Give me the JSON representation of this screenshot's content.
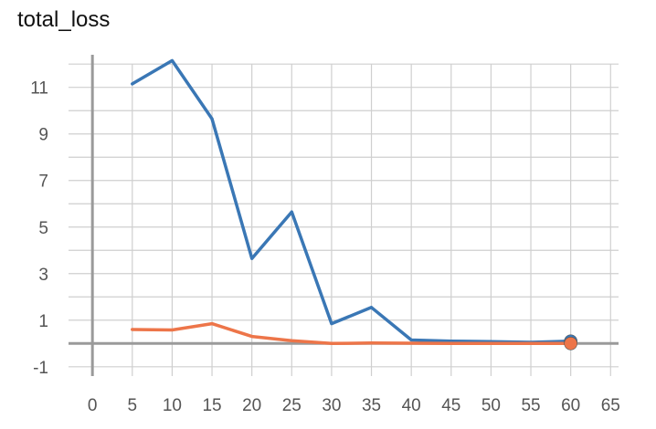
{
  "chart_data": {
    "type": "line",
    "title": "total_loss",
    "xlabel": "",
    "ylabel": "",
    "xlim": [
      -3,
      66
    ],
    "ylim": [
      -1.4,
      12.4
    ],
    "x_ticks": [
      0,
      5,
      10,
      15,
      20,
      25,
      30,
      35,
      40,
      45,
      50,
      55,
      60,
      65
    ],
    "y_ticks": [
      -1,
      1,
      3,
      5,
      7,
      9,
      11
    ],
    "y_minor_ticks": [
      0,
      2,
      4,
      6,
      8,
      10,
      12
    ],
    "grid": true,
    "series": [
      {
        "color": "#3a77b5",
        "x": [
          5,
          10,
          15,
          20,
          25,
          30,
          35,
          40,
          45,
          50,
          55,
          60
        ],
        "y": [
          11.15,
          12.15,
          9.65,
          3.65,
          5.65,
          0.85,
          1.55,
          0.15,
          0.1,
          0.08,
          0.05,
          0.1
        ]
      },
      {
        "color": "#ed7549",
        "x": [
          5,
          10,
          15,
          20,
          25,
          30,
          35,
          40,
          45,
          50,
          55,
          60
        ],
        "y": [
          0.6,
          0.58,
          0.85,
          0.3,
          0.12,
          0.0,
          0.02,
          0.01,
          0.0,
          0.0,
          0.0,
          0.0
        ]
      }
    ]
  }
}
